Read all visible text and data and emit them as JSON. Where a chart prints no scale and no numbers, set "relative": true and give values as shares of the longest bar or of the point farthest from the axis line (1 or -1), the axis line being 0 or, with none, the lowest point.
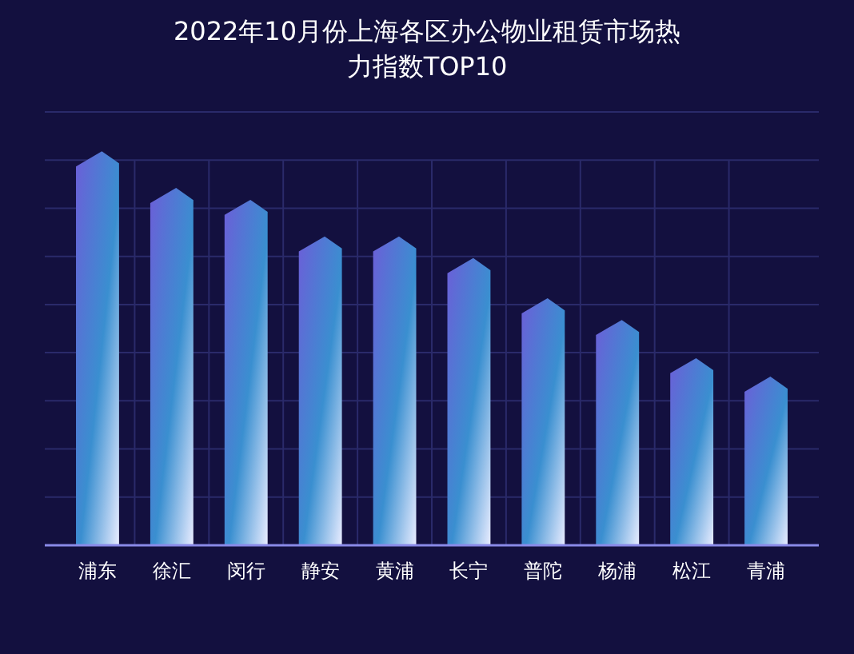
{
  "chart_data": {
    "type": "bar",
    "title": "2022年10月份上海各区办公物业租赁市场热力指数TOP10",
    "relative": true,
    "grid": true,
    "color": "#6b5fd8",
    "categories": [
      "浦东",
      "徐汇",
      "闵行",
      "静安",
      "黄浦",
      "长宁",
      "普陀",
      "杨浦",
      "松江",
      "青浦"
    ],
    "values": [
      1,
      0.907,
      0.877,
      0.784,
      0.784,
      0.729,
      0.627,
      0.572,
      0.475,
      0.428
    ]
  }
}
